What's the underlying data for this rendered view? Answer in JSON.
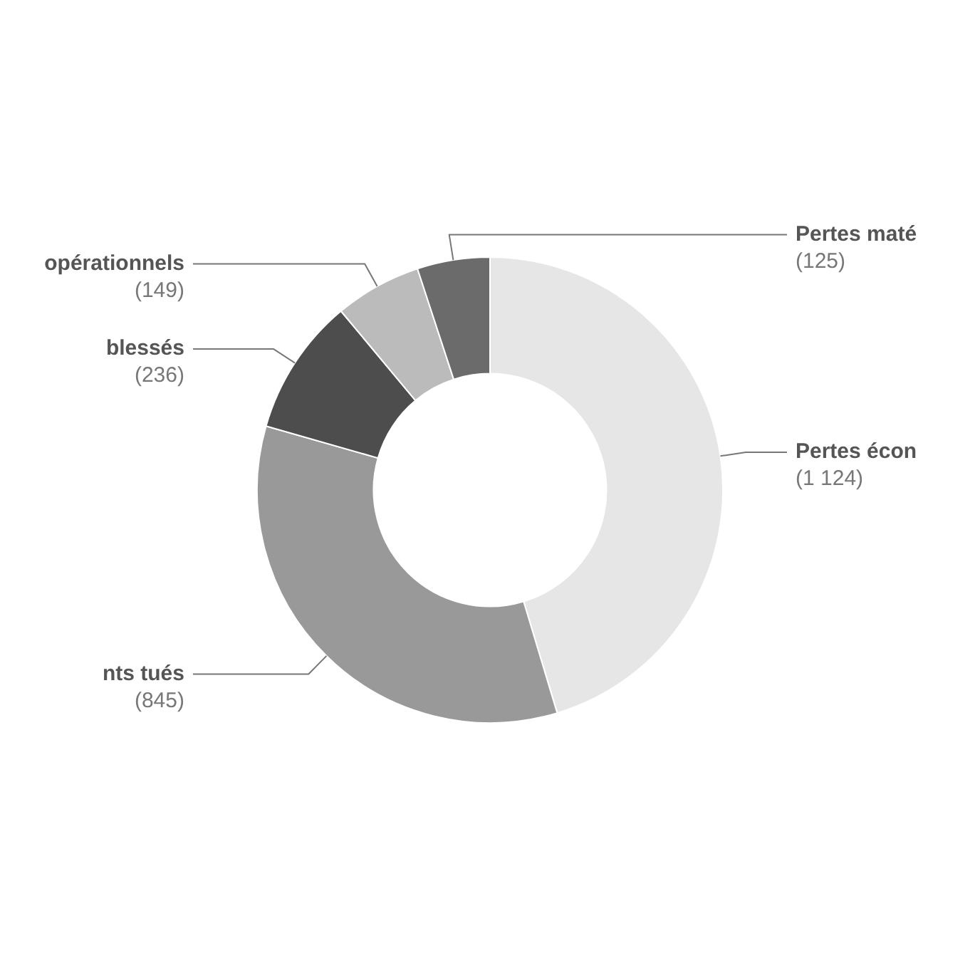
{
  "chart_data": {
    "type": "donut",
    "categories": [
      "Pertes écon",
      "nts tués",
      "blessés",
      "opérationnels",
      "Pertes maté"
    ],
    "values": [
      1124,
      845,
      236,
      149,
      125
    ],
    "colors": [
      "#e6e6e6",
      "#999999",
      "#4d4d4d",
      "#bbbbbb",
      "#6b6b6b"
    ],
    "value_labels": [
      "(1 124)",
      "(845)",
      "(236)",
      "(149)",
      "(125)"
    ]
  }
}
